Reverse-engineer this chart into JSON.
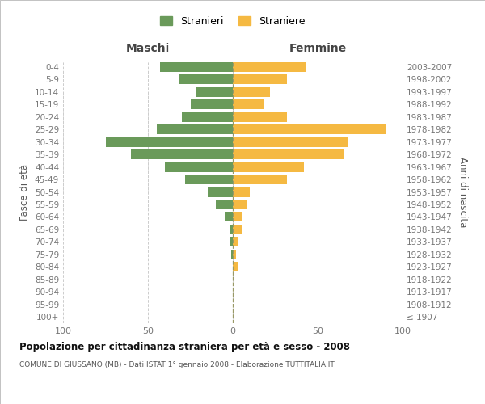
{
  "age_groups": [
    "100+",
    "95-99",
    "90-94",
    "85-89",
    "80-84",
    "75-79",
    "70-74",
    "65-69",
    "60-64",
    "55-59",
    "50-54",
    "45-49",
    "40-44",
    "35-39",
    "30-34",
    "25-29",
    "20-24",
    "15-19",
    "10-14",
    "5-9",
    "0-4"
  ],
  "birth_years": [
    "≤ 1907",
    "1908-1912",
    "1913-1917",
    "1918-1922",
    "1923-1927",
    "1928-1932",
    "1933-1937",
    "1938-1942",
    "1943-1947",
    "1948-1952",
    "1953-1957",
    "1958-1962",
    "1963-1967",
    "1968-1972",
    "1973-1977",
    "1978-1982",
    "1983-1987",
    "1988-1992",
    "1993-1997",
    "1998-2002",
    "2003-2007"
  ],
  "maschi": [
    0,
    0,
    0,
    0,
    0,
    1,
    2,
    2,
    5,
    10,
    15,
    28,
    40,
    60,
    75,
    45,
    30,
    25,
    22,
    32,
    43
  ],
  "femmine": [
    0,
    0,
    0,
    0,
    3,
    2,
    3,
    5,
    5,
    8,
    10,
    32,
    42,
    65,
    68,
    90,
    32,
    18,
    22,
    32,
    43
  ],
  "male_color": "#6a9a5a",
  "female_color": "#f5b942",
  "male_label": "Stranieri",
  "female_label": "Straniere",
  "title": "Popolazione per cittadinanza straniera per età e sesso - 2008",
  "subtitle": "COMUNE DI GIUSSANO (MB) - Dati ISTAT 1° gennaio 2008 - Elaborazione TUTTITALIA.IT",
  "header_left": "Maschi",
  "header_right": "Femmine",
  "ylabel_left": "Fasce di età",
  "ylabel_right": "Anni di nascita",
  "xlim": 100,
  "background_color": "#ffffff",
  "grid_color": "#cccccc",
  "tick_color": "#777777",
  "center_line_color": "#999966"
}
